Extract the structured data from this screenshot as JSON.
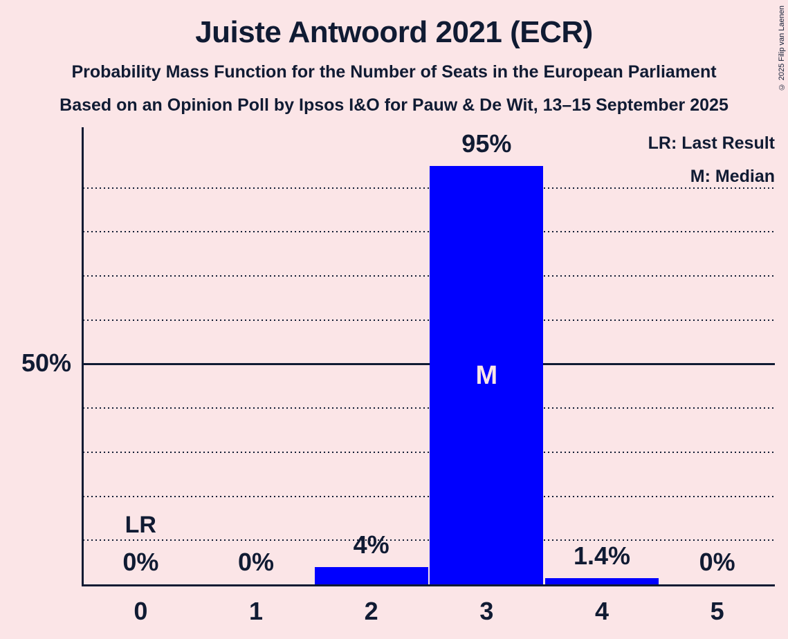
{
  "title": "Juiste Antwoord 2021 (ECR)",
  "subtitle1": "Probability Mass Function for the Number of Seats in the European Parliament",
  "subtitle2": "Based on an Opinion Poll by Ipsos I&O for Pauw & De Wit, 13–15 September 2025",
  "copyright": "© 2025 Filip van Laenen",
  "legend": {
    "lr": "LR: Last Result",
    "median": "M: Median"
  },
  "y_axis": {
    "solid_label": "50%",
    "solid_value": 50,
    "gridline_step": 10,
    "max": 100
  },
  "annotations": {
    "last_result": {
      "category": "0",
      "label": "LR"
    },
    "median": {
      "category": "3",
      "label": "M"
    }
  },
  "colors": {
    "background": "#fbe5e7",
    "text": "#101b33",
    "bar": "#0000ff"
  },
  "chart_data": {
    "type": "bar",
    "title": "Juiste Antwoord 2021 (ECR)",
    "categories": [
      "0",
      "1",
      "2",
      "3",
      "4",
      "5"
    ],
    "values": [
      0,
      0,
      4,
      95,
      1.4,
      0
    ],
    "bar_labels": [
      "0%",
      "0%",
      "4%",
      "95%",
      "1.4%",
      "0%"
    ],
    "ylim": [
      0,
      100
    ],
    "grid": "dotted horizontal lines every 10%, solid line at 50%",
    "legend_position": "top-right",
    "last_result_category": "0",
    "median_category": "3"
  }
}
